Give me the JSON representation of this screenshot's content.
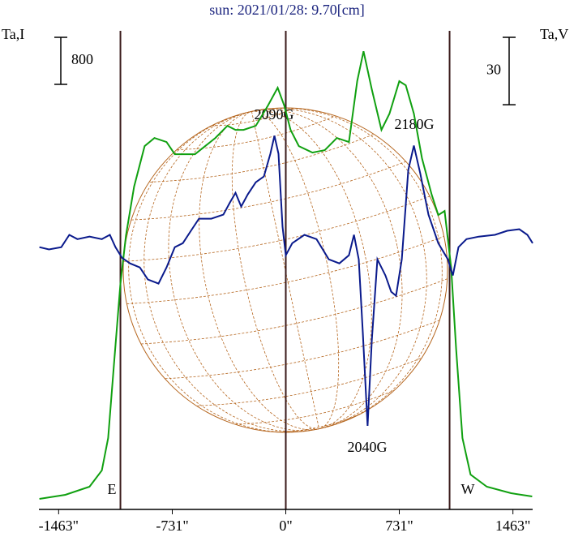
{
  "chart_data": {
    "type": "line",
    "title": "sun: 2021/01/28: 9.70[cm]",
    "y_label": "Ta,I",
    "y2_label": "Ta,V",
    "xlim": [
      -1590,
      1590
    ],
    "xticks": [
      {
        "value": -1463,
        "label": "-1463\""
      },
      {
        "value": -731,
        "label": "-731\""
      },
      {
        "value": 0,
        "label": "0\""
      },
      {
        "value": 731,
        "label": "731\""
      },
      {
        "value": 1463,
        "label": "1463\""
      }
    ],
    "ylim": [
      0,
      8140
    ],
    "y2lim": [
      -118,
      95
    ],
    "vlines": [
      -1065,
      0,
      1055
    ],
    "scale_bars": [
      {
        "value": 800,
        "label": "800",
        "axis": "y"
      },
      {
        "value": 30,
        "label": "30",
        "axis": "y2"
      }
    ],
    "annotations": [
      "2090G",
      "2180G",
      "2040G",
      "E",
      "W"
    ],
    "series": [
      {
        "name": "Ta,I",
        "color": "#10a010",
        "axis": "y",
        "x": [
          -1587,
          -1420,
          -1264,
          -1185,
          -1144,
          -1107,
          -1065,
          -1029,
          -977,
          -909,
          -846,
          -768,
          -715,
          -585,
          -454,
          -376,
          -324,
          -272,
          -193,
          -115,
          -52,
          -10,
          31,
          84,
          172,
          251,
          329,
          407,
          460,
          501,
          554,
          616,
          668,
          731,
          773,
          825,
          877,
          940,
          982,
          1023,
          1065,
          1097,
          1138,
          1190,
          1295,
          1451,
          1587
        ],
        "values": [
          179,
          248,
          386,
          662,
          1214,
          2455,
          3834,
          4662,
          5490,
          6179,
          6317,
          6248,
          6041,
          6041,
          6317,
          6524,
          6455,
          6455,
          6524,
          6869,
          7172,
          6869,
          6455,
          6179,
          6069,
          6110,
          6317,
          6248,
          7283,
          7793,
          7145,
          6455,
          6731,
          7283,
          7214,
          6731,
          5972,
          5352,
          5007,
          5076,
          4110,
          2731,
          1214,
          593,
          386,
          276,
          221
        ]
      },
      {
        "name": "Ta,V",
        "color": "#0a1a8c",
        "axis": "y2",
        "x": [
          -1587,
          -1525,
          -1446,
          -1394,
          -1342,
          -1264,
          -1185,
          -1133,
          -1097,
          -1055,
          -1003,
          -940,
          -888,
          -820,
          -768,
          -715,
          -663,
          -611,
          -559,
          -480,
          -402,
          -360,
          -324,
          -287,
          -245,
          -193,
          -141,
          -99,
          -73,
          -47,
          -21,
          0,
          42,
          120,
          198,
          277,
          345,
          407,
          439,
          470,
          496,
          527,
          554,
          590,
          642,
          679,
          710,
          747,
          789,
          825,
          867,
          919,
          982,
          1044,
          1076,
          1112,
          1164,
          1243,
          1347,
          1426,
          1504,
          1556,
          1590
        ],
        "values": [
          -1.3,
          -2.3,
          -1.3,
          4.2,
          2.3,
          3.4,
          2.3,
          4.2,
          -1.3,
          -6.0,
          -8.5,
          -10.3,
          -15.7,
          -17.5,
          -10.3,
          -1.3,
          0.5,
          6.0,
          11.4,
          11.4,
          13.2,
          18.6,
          22.9,
          16.8,
          22.2,
          27.6,
          30.2,
          40.3,
          48.3,
          40.3,
          7.8,
          -4.9,
          0.5,
          4.2,
          2.3,
          -6.7,
          -8.5,
          -4.9,
          4.2,
          -6.7,
          -39.2,
          -80.8,
          -42.8,
          -6.7,
          -13.9,
          -21.1,
          -22.9,
          -6.7,
          33.1,
          43.9,
          31.3,
          13.2,
          0.5,
          -6.7,
          -13.9,
          -1.3,
          2.3,
          3.4,
          4.2,
          6.0,
          6.7,
          4.2,
          0.5
        ]
      }
    ]
  }
}
